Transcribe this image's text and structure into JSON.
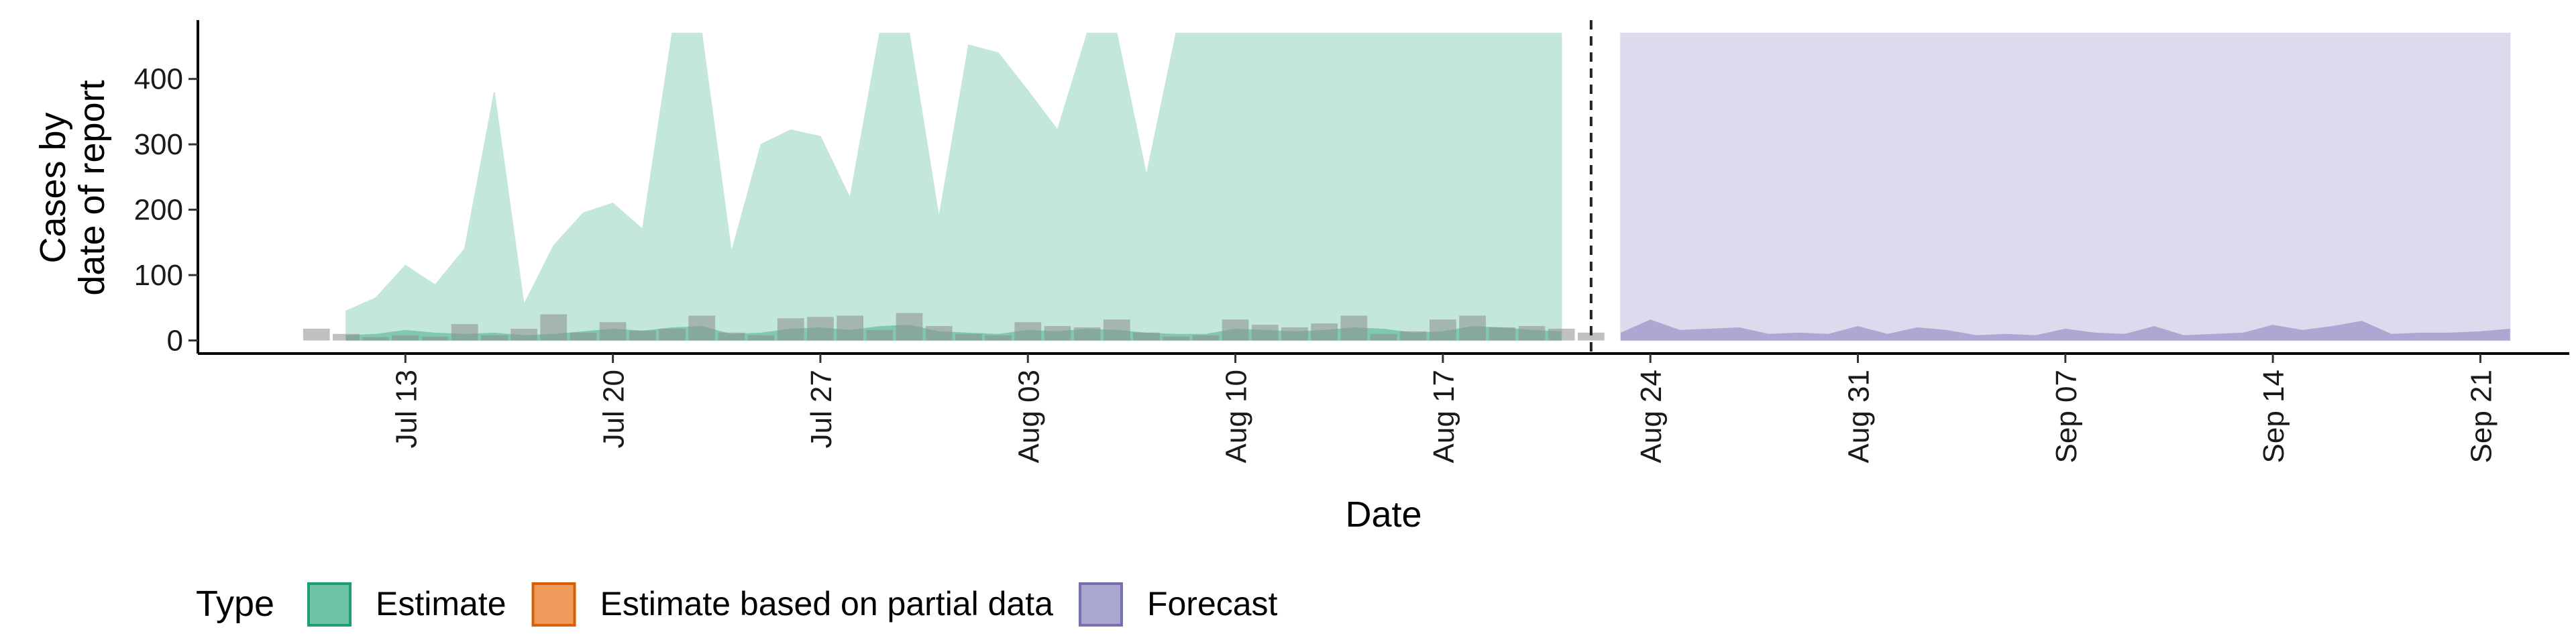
{
  "chart_data": {
    "type": "area",
    "xlabel": "Date",
    "ylabel": [
      "Cases by",
      "date of report"
    ],
    "yticks": [
      0,
      100,
      200,
      300,
      400
    ],
    "ylim": [
      -20,
      490
    ],
    "xlim": [
      "2020-07-06",
      "2020-09-24"
    ],
    "xticks": [
      "2020-07-13",
      "2020-07-20",
      "2020-07-27",
      "2020-08-03",
      "2020-08-10",
      "2020-08-17",
      "2020-08-24",
      "2020-08-31",
      "2020-09-07",
      "2020-09-14",
      "2020-09-21"
    ],
    "xtick_labels": [
      "Jul 13",
      "Jul 20",
      "Jul 27",
      "Aug 03",
      "Aug 10",
      "Aug 17",
      "Aug 24",
      "Aug 31",
      "Sep 07",
      "Sep 14",
      "Sep 21"
    ],
    "forecast_start_line": "2020-08-22",
    "legend": {
      "title": "Type",
      "position": "bottom",
      "items": [
        {
          "label": "Estimate",
          "fill": "#6fc3a7",
          "stroke": "#1b9e77"
        },
        {
          "label": "Estimate based on partial data",
          "fill": "#ee9a5a",
          "stroke": "#d95f02"
        },
        {
          "label": "Forecast",
          "fill": "#a9a6cf",
          "stroke": "#7570b3"
        }
      ]
    },
    "series": [
      {
        "name": "Estimate",
        "color": "#1b9e77",
        "band_fill": "#c4e7dc",
        "inner_fill": "#7cc7ad",
        "x": [
          "2020-07-11",
          "2020-07-12",
          "2020-07-13",
          "2020-07-14",
          "2020-07-15",
          "2020-07-16",
          "2020-07-17",
          "2020-07-18",
          "2020-07-19",
          "2020-07-20",
          "2020-07-21",
          "2020-07-22",
          "2020-07-23",
          "2020-07-24",
          "2020-07-25",
          "2020-07-26",
          "2020-07-27",
          "2020-07-28",
          "2020-07-29",
          "2020-07-30",
          "2020-07-31",
          "2020-08-01",
          "2020-08-02",
          "2020-08-03",
          "2020-08-04",
          "2020-08-05",
          "2020-08-06",
          "2020-08-07",
          "2020-08-08",
          "2020-08-09",
          "2020-08-10",
          "2020-08-11",
          "2020-08-12",
          "2020-08-13",
          "2020-08-14",
          "2020-08-15",
          "2020-08-16",
          "2020-08-17",
          "2020-08-18",
          "2020-08-19",
          "2020-08-20",
          "2020-08-21"
        ],
        "upper": [
          45,
          65,
          115,
          85,
          140,
          380,
          55,
          145,
          195,
          210,
          170,
          470,
          470,
          135,
          300,
          322,
          312,
          218,
          470,
          470,
          188,
          452,
          440,
          382,
          322,
          470,
          470,
          253,
          470,
          470,
          470,
          470,
          470,
          470,
          470,
          470,
          470,
          470,
          470,
          470,
          470,
          470
        ],
        "inner_upper": [
          8,
          10,
          16,
          12,
          10,
          12,
          8,
          10,
          14,
          18,
          15,
          20,
          22,
          10,
          12,
          18,
          20,
          16,
          22,
          24,
          14,
          12,
          10,
          16,
          14,
          18,
          16,
          12,
          10,
          10,
          18,
          16,
          14,
          16,
          20,
          18,
          12,
          14,
          22,
          20,
          16,
          14
        ]
      },
      {
        "name": "Forecast",
        "color": "#7570b3",
        "band_fill": "#dcdaec",
        "inner_fill": "#a9a4d2",
        "x": [
          "2020-08-23",
          "2020-08-24",
          "2020-08-25",
          "2020-08-26",
          "2020-08-27",
          "2020-08-28",
          "2020-08-29",
          "2020-08-30",
          "2020-08-31",
          "2020-09-01",
          "2020-09-02",
          "2020-09-03",
          "2020-09-04",
          "2020-09-05",
          "2020-09-06",
          "2020-09-07",
          "2020-09-08",
          "2020-09-09",
          "2020-09-10",
          "2020-09-11",
          "2020-09-12",
          "2020-09-13",
          "2020-09-14",
          "2020-09-15",
          "2020-09-16",
          "2020-09-17",
          "2020-09-18",
          "2020-09-19",
          "2020-09-20",
          "2020-09-21",
          "2020-09-22"
        ],
        "upper": [
          470,
          470,
          470,
          470,
          470,
          470,
          470,
          470,
          470,
          470,
          470,
          470,
          470,
          470,
          470,
          470,
          470,
          470,
          470,
          470,
          470,
          470,
          470,
          470,
          470,
          470,
          470,
          470,
          470,
          470,
          470
        ],
        "inner_upper": [
          12,
          32,
          16,
          18,
          20,
          10,
          12,
          10,
          22,
          10,
          20,
          16,
          8,
          10,
          8,
          18,
          12,
          10,
          22,
          8,
          10,
          12,
          24,
          16,
          22,
          30,
          10,
          12,
          12,
          14,
          18
        ]
      }
    ],
    "reported_cases": {
      "color": "#8c8c8c",
      "x": [
        "2020-07-10",
        "2020-07-11",
        "2020-07-12",
        "2020-07-13",
        "2020-07-14",
        "2020-07-15",
        "2020-07-16",
        "2020-07-17",
        "2020-07-18",
        "2020-07-19",
        "2020-07-20",
        "2020-07-21",
        "2020-07-22",
        "2020-07-23",
        "2020-07-24",
        "2020-07-25",
        "2020-07-26",
        "2020-07-27",
        "2020-07-28",
        "2020-07-29",
        "2020-07-30",
        "2020-07-31",
        "2020-08-01",
        "2020-08-02",
        "2020-08-03",
        "2020-08-04",
        "2020-08-05",
        "2020-08-06",
        "2020-08-07",
        "2020-08-08",
        "2020-08-09",
        "2020-08-10",
        "2020-08-11",
        "2020-08-12",
        "2020-08-13",
        "2020-08-14",
        "2020-08-15",
        "2020-08-16",
        "2020-08-17",
        "2020-08-18",
        "2020-08-19",
        "2020-08-20",
        "2020-08-21",
        "2020-08-22"
      ],
      "values": [
        18,
        10,
        5,
        8,
        6,
        25,
        8,
        18,
        40,
        12,
        28,
        15,
        18,
        38,
        12,
        8,
        34,
        36,
        38,
        16,
        42,
        22,
        10,
        8,
        28,
        22,
        20,
        32,
        12,
        6,
        8,
        32,
        24,
        20,
        26,
        38,
        10,
        14,
        32,
        38,
        20,
        22,
        18,
        12
      ]
    }
  }
}
